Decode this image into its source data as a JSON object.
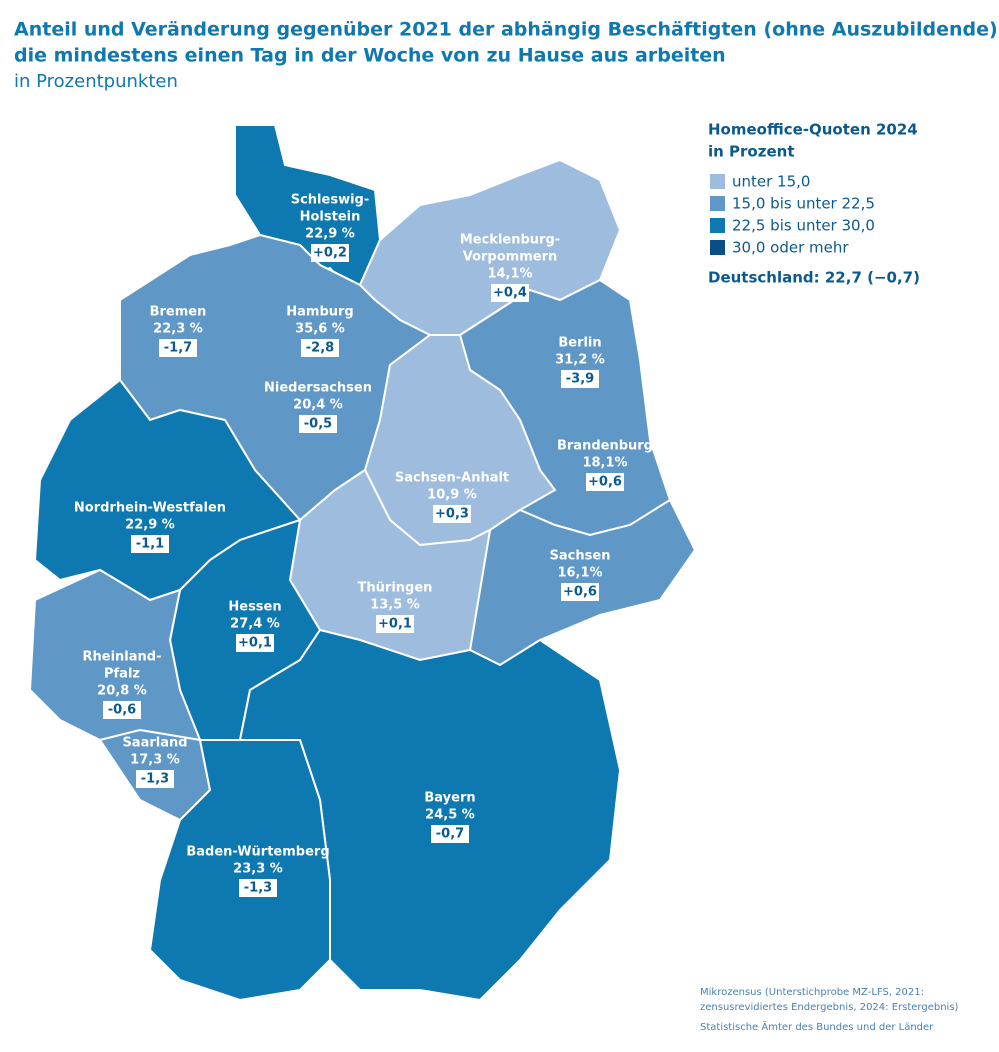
{
  "header": {
    "title": [
      "Anteil und Veränderung gegenüber 2021 der abhängig Beschäftigten (ohne Auszubildende),",
      "die mindestens einen Tag in der Woche von zu Hause aus arbeiten"
    ],
    "subtitle": "in Prozentpunkten"
  },
  "legend": {
    "title": [
      "Homeoffice-Quoten 2024",
      "in Prozent"
    ],
    "items": [
      {
        "label": "unter 15,0",
        "color": "#9dbcde"
      },
      {
        "label": "15,0 bis unter 22,5",
        "color": "#5f97c7"
      },
      {
        "label": "22,5 bis unter 30,0",
        "color": "#0e78b1"
      },
      {
        "label": "30,0 oder mehr",
        "color": "#0a4e86"
      }
    ],
    "total": "Deutschland: 22,7 (−0,7)"
  },
  "regions": [
    {
      "name": [
        "Schleswig-",
        "Holstein"
      ],
      "quote": "22,9 %",
      "change": "+0,2",
      "color": "#0e78b1"
    },
    {
      "name": [
        "Mecklenburg-",
        "Vorpommern"
      ],
      "quote": "14,1%",
      "change": "+0,4",
      "color": "#9dbcde"
    },
    {
      "name": [
        "Bremen"
      ],
      "quote": "22,3 %",
      "change": "-1,7",
      "color": "#5f97c7"
    },
    {
      "name": [
        "Hamburg"
      ],
      "quote": "35,6 %",
      "change": "-2,8",
      "color": "#0a4e86"
    },
    {
      "name": [
        "Berlin"
      ],
      "quote": "31,2 %",
      "change": "-3,9",
      "color": "#0a4e86"
    },
    {
      "name": [
        "Niedersachsen"
      ],
      "quote": "20,4 %",
      "change": "-0,5",
      "color": "#5f97c7"
    },
    {
      "name": [
        "Brandenburg"
      ],
      "quote": "18,1%",
      "change": "+0,6",
      "color": "#5f97c7"
    },
    {
      "name": [
        "Sachsen-Anhalt"
      ],
      "quote": "10,9 %",
      "change": "+0,3",
      "color": "#9dbcde"
    },
    {
      "name": [
        "Nordrhein-Westfalen"
      ],
      "quote": "22,9 %",
      "change": "-1,1",
      "color": "#0e78b1"
    },
    {
      "name": [
        "Sachsen"
      ],
      "quote": "16,1%",
      "change": "+0,6",
      "color": "#5f97c7"
    },
    {
      "name": [
        "Thüringen"
      ],
      "quote": "13,5 %",
      "change": "+0,1",
      "color": "#9dbcde"
    },
    {
      "name": [
        "Hessen"
      ],
      "quote": "27,4 %",
      "change": "+0,1",
      "color": "#0e78b1"
    },
    {
      "name": [
        "Rheinland-",
        "Pfalz"
      ],
      "quote": "20,8 %",
      "change": "-0,6",
      "color": "#5f97c7"
    },
    {
      "name": [
        "Saarland"
      ],
      "quote": "17,3 %",
      "change": "-1,3",
      "color": "#5f97c7"
    },
    {
      "name": [
        "Bayern"
      ],
      "quote": "24,5 %",
      "change": "-0,7",
      "color": "#0e78b1"
    },
    {
      "name": [
        "Baden-Würtemberg"
      ],
      "quote": "23,3 %",
      "change": "-1,3",
      "color": "#0e78b1"
    }
  ],
  "source": [
    "Mikrozensus (Unterstichprobe MZ-LFS, 2021:",
    "zensusrevidiertes Endergebnis, 2024: Erstergebnis)",
    "Statistische Ämter des Bundes und der Länder"
  ]
}
